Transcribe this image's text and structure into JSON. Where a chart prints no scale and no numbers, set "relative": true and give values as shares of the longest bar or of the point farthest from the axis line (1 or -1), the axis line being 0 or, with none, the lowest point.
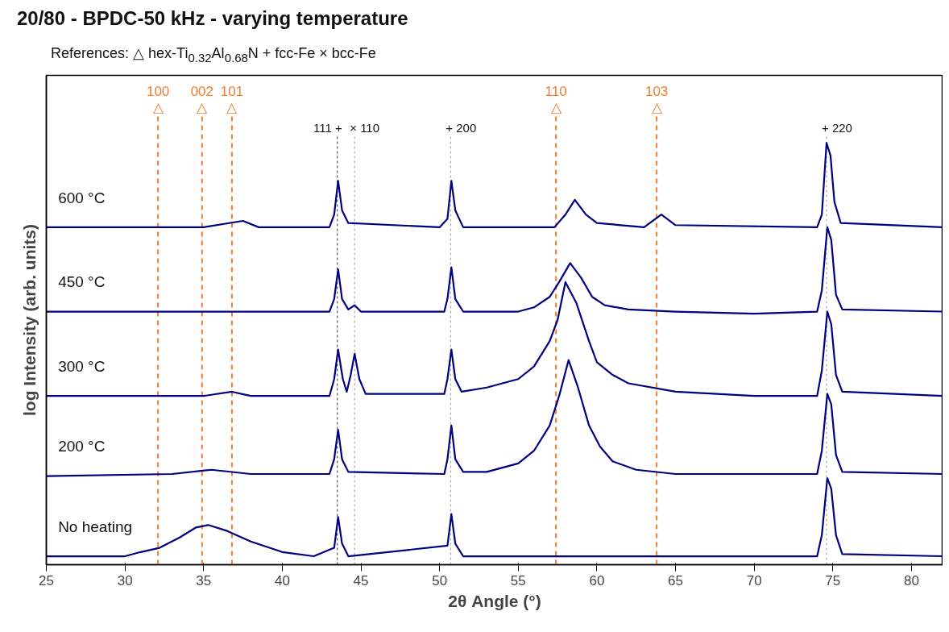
{
  "chart_data": {
    "type": "line",
    "title": "20/80 - BPDC-50 kHz - varying temperature",
    "subtitle": "References: △ hex-Ti$_{0.32}$Al$_{0.68}$N + fcc-Fe × bcc-Fe",
    "xlabel": "2θ Angle (°)",
    "ylabel": "log Intensity (arb. units)",
    "relative": true,
    "xlim": [
      25,
      82
    ],
    "xticks": [
      25,
      30,
      35,
      40,
      45,
      50,
      55,
      60,
      65,
      70,
      75,
      80
    ],
    "grid": false,
    "marker": "none",
    "line_style": "solid",
    "series": [
      {
        "name": "600 °C",
        "color": "#000080",
        "x": [
          25,
          30,
          35,
          37.5,
          38.5,
          43,
          43.3,
          43.55,
          43.8,
          44.2,
          50,
          50.5,
          50.75,
          51.0,
          51.5,
          57.3,
          58,
          58.6,
          59.3,
          60,
          63,
          64.1,
          65,
          74,
          74.3,
          74.6,
          74.85,
          75.1,
          75.5,
          82
        ],
        "values": [
          0.8,
          0.8,
          0.8,
          0.815,
          0.8,
          0.8,
          0.83,
          0.91,
          0.84,
          0.81,
          0.8,
          0.82,
          0.91,
          0.84,
          0.8,
          0.8,
          0.83,
          0.865,
          0.83,
          0.81,
          0.8,
          0.83,
          0.805,
          0.8,
          0.83,
          1.0,
          0.97,
          0.86,
          0.81,
          0.8
        ]
      },
      {
        "name": "450 °C",
        "color": "#000080",
        "x": [
          25,
          40,
          43,
          43.3,
          43.55,
          43.8,
          44.2,
          44.6,
          45,
          50.3,
          50.5,
          50.75,
          51,
          51.5,
          55,
          56,
          57,
          57.6,
          58.3,
          59,
          59.7,
          60.5,
          62,
          65,
          70,
          74,
          74.3,
          74.65,
          74.9,
          75.2,
          75.6,
          82
        ],
        "values": [
          0.6,
          0.6,
          0.6,
          0.63,
          0.7,
          0.63,
          0.605,
          0.615,
          0.6,
          0.6,
          0.63,
          0.705,
          0.63,
          0.6,
          0.6,
          0.61,
          0.635,
          0.67,
          0.715,
          0.68,
          0.635,
          0.615,
          0.605,
          0.6,
          0.595,
          0.6,
          0.65,
          0.8,
          0.77,
          0.64,
          0.605,
          0.6
        ]
      },
      {
        "name": "300 °C",
        "color": "#000080",
        "x": [
          25,
          35,
          36.8,
          38,
          43,
          43.3,
          43.55,
          43.85,
          44.1,
          44.35,
          44.6,
          44.9,
          45.3,
          50.3,
          50.5,
          50.75,
          51,
          51.4,
          53,
          55,
          56,
          57,
          57.5,
          58.0,
          58.7,
          59.5,
          60,
          61,
          62,
          65,
          70,
          74,
          74.3,
          74.65,
          74.9,
          75.2,
          75.6,
          82
        ],
        "values": [
          0.4,
          0.4,
          0.41,
          0.4,
          0.4,
          0.44,
          0.51,
          0.44,
          0.41,
          0.45,
          0.5,
          0.44,
          0.405,
          0.405,
          0.44,
          0.51,
          0.44,
          0.41,
          0.42,
          0.44,
          0.47,
          0.53,
          0.58,
          0.67,
          0.62,
          0.53,
          0.48,
          0.45,
          0.43,
          0.41,
          0.4,
          0.4,
          0.46,
          0.6,
          0.57,
          0.45,
          0.41,
          0.4
        ]
      },
      {
        "name": "200 °C",
        "color": "#000080",
        "x": [
          25,
          33,
          35.5,
          38,
          43,
          43.3,
          43.55,
          43.8,
          44.2,
          50.3,
          50.5,
          50.75,
          51,
          51.5,
          53,
          55,
          56,
          57,
          57.6,
          58.2,
          58.8,
          59.5,
          60.2,
          61,
          62.5,
          65,
          74,
          74.3,
          74.65,
          74.9,
          75.2,
          75.6,
          82
        ],
        "values": [
          0.21,
          0.215,
          0.225,
          0.215,
          0.215,
          0.25,
          0.32,
          0.25,
          0.22,
          0.215,
          0.25,
          0.33,
          0.25,
          0.22,
          0.22,
          0.24,
          0.27,
          0.33,
          0.4,
          0.485,
          0.42,
          0.33,
          0.28,
          0.245,
          0.225,
          0.215,
          0.215,
          0.27,
          0.405,
          0.38,
          0.26,
          0.22,
          0.215
        ]
      },
      {
        "name": "No heating",
        "color": "#000080",
        "x": [
          25,
          30,
          31,
          32.2,
          33.5,
          34.5,
          35.3,
          36.5,
          38,
          40,
          42,
          43.3,
          43.55,
          43.8,
          44.2,
          50.5,
          50.75,
          51,
          51.5,
          74,
          74.3,
          74.65,
          74.9,
          75.2,
          75.6,
          82
        ],
        "values": [
          0.02,
          0.02,
          0.03,
          0.04,
          0.065,
          0.088,
          0.094,
          0.08,
          0.055,
          0.03,
          0.02,
          0.04,
          0.113,
          0.05,
          0.02,
          0.045,
          0.12,
          0.05,
          0.02,
          0.02,
          0.07,
          0.205,
          0.18,
          0.07,
          0.025,
          0.02
        ]
      }
    ],
    "ref_lines": [
      {
        "axis": "x",
        "value": 32.1,
        "color": "#f47c2c",
        "line_style": "dashed"
      },
      {
        "axis": "x",
        "value": 34.9,
        "color": "#f47c2c",
        "line_style": "dashed"
      },
      {
        "axis": "x",
        "value": 36.8,
        "color": "#f47c2c",
        "line_style": "dashed"
      },
      {
        "axis": "x",
        "value": 57.4,
        "color": "#f47c2c",
        "line_style": "dashed"
      },
      {
        "axis": "x",
        "value": 63.8,
        "color": "#f47c2c",
        "line_style": "dashed"
      },
      {
        "axis": "x",
        "value": 43.5,
        "color": "#333333",
        "line_style": "dotted"
      },
      {
        "axis": "x",
        "value": 44.6,
        "color": "#999999",
        "line_style": "dotted"
      },
      {
        "axis": "x",
        "value": 50.7,
        "color": "#999999",
        "line_style": "dotted"
      },
      {
        "axis": "x",
        "value": 74.6,
        "color": "#999999",
        "line_style": "dotted"
      }
    ],
    "annotations": [
      {
        "text": "100\n△",
        "x": 32.1,
        "y": 1.065
      },
      {
        "text": "002\n△",
        "x": 34.9,
        "y": 1.065
      },
      {
        "text": "101\n△",
        "x": 36.8,
        "y": 1.065
      },
      {
        "text": "110\n△",
        "x": 57.4,
        "y": 1.065
      },
      {
        "text": "103\n△",
        "x": 63.8,
        "y": 1.065
      },
      {
        "text": "111 +",
        "x": 43.5,
        "y": 1.02
      },
      {
        "text": "× 110",
        "x": 44.6,
        "y": 1.02
      },
      {
        "text": "+ 200",
        "x": 50.7,
        "y": 1.02
      },
      {
        "text": "+ 220",
        "x": 74.6,
        "y": 1.02
      }
    ]
  }
}
